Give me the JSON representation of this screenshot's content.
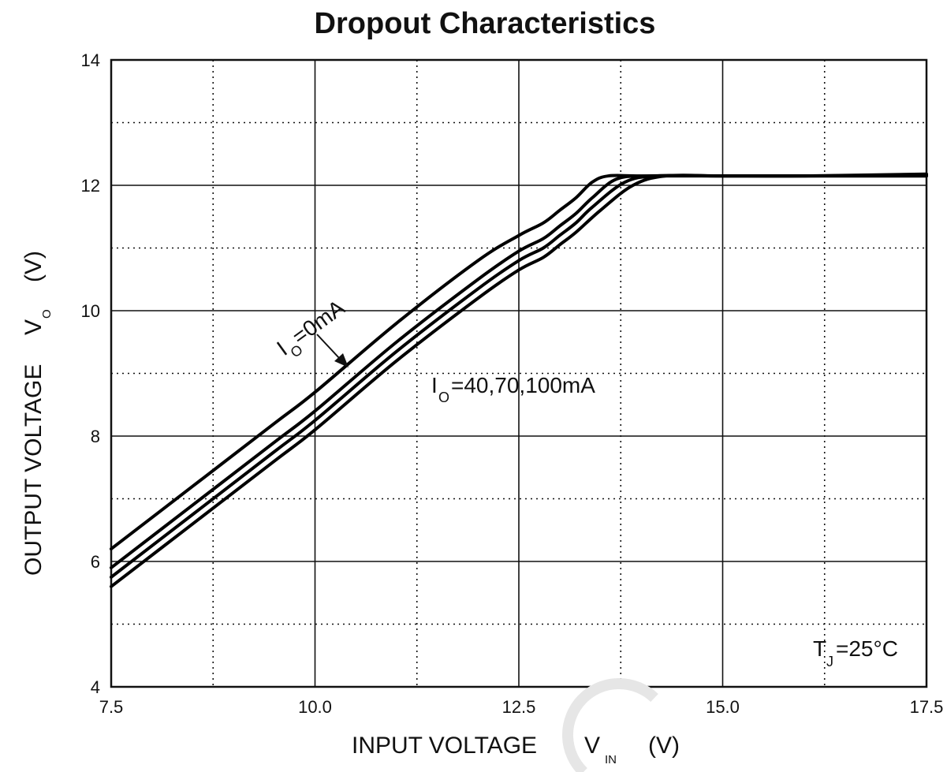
{
  "chart_data": {
    "type": "line",
    "title": "Dropout Characteristics",
    "xlabel": {
      "main": "INPUT VOLTAGE",
      "symbol": "V",
      "subscript": "IN",
      "unit": "(V)"
    },
    "ylabel": {
      "main": "OUTPUT VOLTAGE",
      "symbol": "V",
      "subscript": "O",
      "unit": "(V)"
    },
    "xlim": [
      7.5,
      17.5
    ],
    "ylim": [
      4,
      14
    ],
    "xticks": [
      7.5,
      10.0,
      12.5,
      15.0,
      17.5
    ],
    "xtick_labels": [
      "7.5",
      "10.0",
      "12.5",
      "15.0",
      "17.5"
    ],
    "yticks": [
      4,
      6,
      8,
      10,
      12,
      14
    ],
    "ytick_labels": [
      "4",
      "6",
      "8",
      "10",
      "12",
      "14"
    ],
    "grid": {
      "major": "solid",
      "minor": "dotted"
    },
    "series": [
      {
        "x": [
          7.5,
          8.5,
          9.5,
          10.0,
          11.0,
          12.0,
          12.5,
          12.8,
          13.0,
          13.2,
          13.4,
          13.6,
          14.0,
          15.0,
          16.0,
          17.5
        ],
        "y": [
          6.2,
          7.2,
          8.2,
          8.7,
          9.8,
          10.8,
          11.2,
          11.4,
          11.6,
          11.8,
          12.05,
          12.15,
          12.15,
          12.15,
          12.15,
          12.18
        ]
      },
      {
        "x": [
          7.5,
          8.5,
          9.5,
          10.0,
          11.0,
          12.0,
          12.5,
          12.8,
          13.0,
          13.2,
          13.4,
          13.7,
          14.1,
          15.0,
          16.0,
          17.5
        ],
        "y": [
          5.9,
          6.9,
          7.9,
          8.4,
          9.5,
          10.5,
          10.95,
          11.15,
          11.35,
          11.55,
          11.8,
          12.1,
          12.15,
          12.15,
          12.15,
          12.16
        ]
      },
      {
        "x": [
          7.5,
          8.5,
          9.5,
          10.0,
          11.0,
          12.0,
          12.5,
          12.8,
          13.0,
          13.2,
          13.4,
          13.8,
          14.2,
          15.0,
          16.0,
          17.5
        ],
        "y": [
          5.75,
          6.75,
          7.75,
          8.25,
          9.35,
          10.35,
          10.8,
          11.0,
          11.2,
          11.4,
          11.65,
          12.05,
          12.15,
          12.15,
          12.15,
          12.15
        ]
      },
      {
        "x": [
          7.5,
          8.5,
          9.5,
          10.0,
          11.0,
          12.0,
          12.5,
          12.8,
          13.0,
          13.2,
          13.5,
          13.9,
          14.3,
          15.0,
          16.0,
          17.5
        ],
        "y": [
          5.6,
          6.6,
          7.6,
          8.1,
          9.2,
          10.2,
          10.65,
          10.85,
          11.05,
          11.25,
          11.6,
          12.0,
          12.15,
          12.15,
          12.15,
          12.15
        ]
      }
    ],
    "annotations": [
      {
        "symbol": "I",
        "subscript": "O",
        "text": "=0mA",
        "arrow_to": [
          10.4,
          9.1
        ]
      },
      {
        "symbol": "I",
        "subscript": "O",
        "text": "=40,70,100mA"
      },
      {
        "symbol": "T",
        "subscript": "J",
        "text": "=25°C"
      }
    ]
  }
}
